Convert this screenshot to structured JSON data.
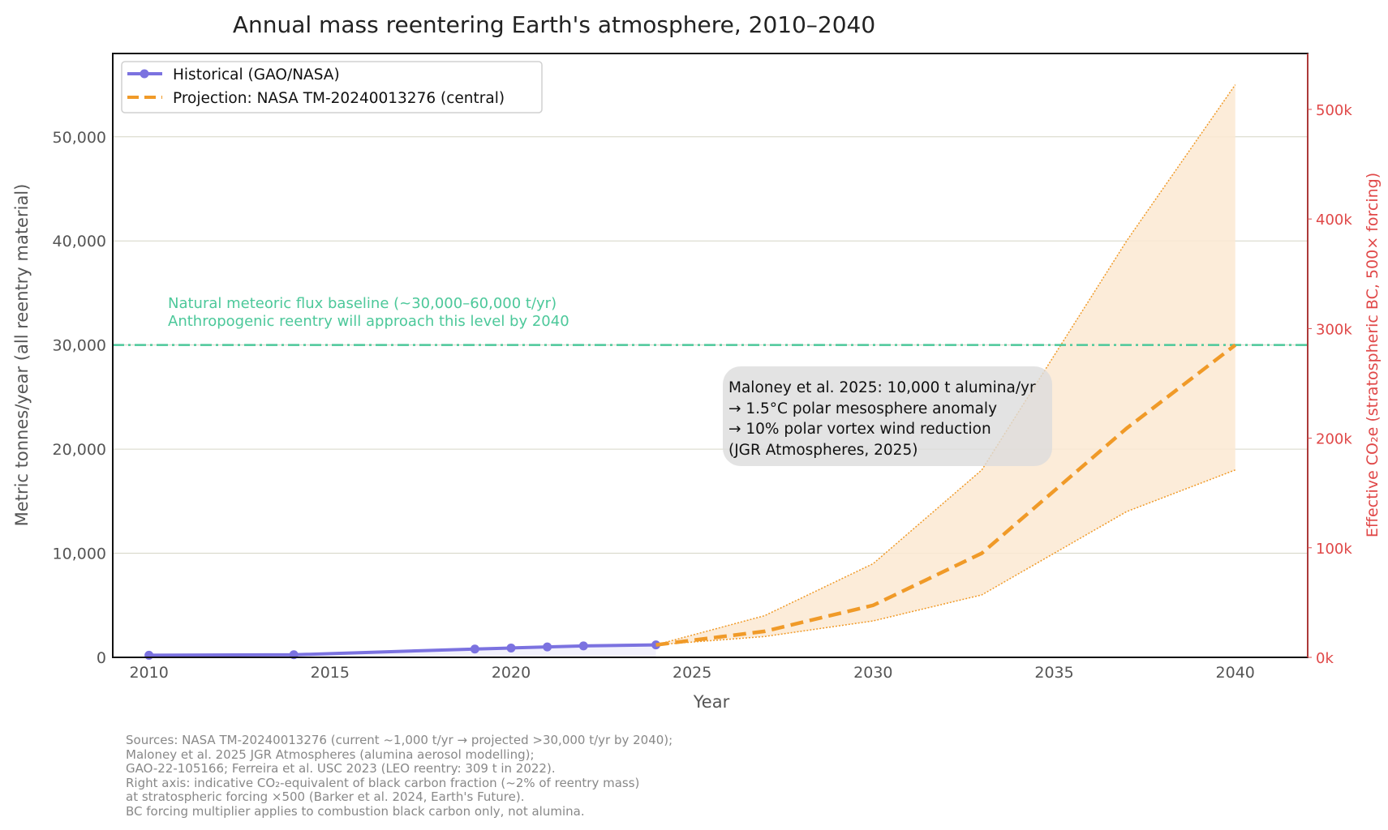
{
  "chart_data": {
    "type": "line",
    "title": "Annual mass reentering Earth's atmosphere, 2010–2040",
    "xlabel": "Year",
    "ylabel": "Metric tonnes/year (all reentry material)",
    "y2label": "Effective CO₂e (stratospheric BC, 500× forcing)",
    "xlim": [
      2009,
      2042
    ],
    "ylim": [
      0,
      58000
    ],
    "y2lim": [
      0,
      551000
    ],
    "xticks": [
      2010,
      2015,
      2020,
      2025,
      2030,
      2035,
      2040
    ],
    "yticks": [
      0,
      10000,
      20000,
      30000,
      40000,
      50000
    ],
    "ytick_labels": [
      "0",
      "10,000",
      "20,000",
      "30,000",
      "40,000",
      "50,000"
    ],
    "y2ticks": [
      0,
      100000,
      200000,
      300000,
      400000,
      500000
    ],
    "y2tick_labels": [
      "0k",
      "100k",
      "200k",
      "300k",
      "400k",
      "500k"
    ],
    "grid": "horizontal",
    "legend_placement": "top-left",
    "colors": {
      "historical": "#7b72e0",
      "projection": "#f09a28",
      "band": "#fbe9d2",
      "baseline": "#4cc89a",
      "right_axis": "#e04848"
    },
    "series": [
      {
        "name": "Historical (GAO/NASA)",
        "style": "solid-markers",
        "x": [
          2010,
          2014,
          2019,
          2020,
          2021,
          2022,
          2024
        ],
        "y": [
          200,
          250,
          800,
          900,
          1000,
          1100,
          1200
        ]
      },
      {
        "name": "Projection: NASA TM-20240013276 (central)",
        "style": "dashed",
        "x": [
          2024,
          2027,
          2030,
          2033,
          2037,
          2040
        ],
        "y": [
          1200,
          2500,
          5000,
          10000,
          22000,
          30000
        ]
      }
    ],
    "band": {
      "x": [
        2024,
        2027,
        2030,
        2033,
        2037,
        2040
      ],
      "upper": [
        1200,
        4000,
        9000,
        18000,
        40000,
        55000
      ],
      "lower": [
        1200,
        2000,
        3500,
        6000,
        14000,
        18000
      ]
    },
    "baseline": {
      "y": 30000,
      "label_lines": [
        "Natural meteoric flux baseline (~30,000–60,000 t/yr)",
        "Anthropogenic reentry will approach this level by 2040"
      ]
    },
    "annotation_lines": [
      "Maloney et al. 2025: 10,000 t alumina/yr",
      "→ 1.5°C polar mesosphere anomaly",
      "→ 10% polar vortex wind reduction",
      "(JGR Atmospheres, 2025)"
    ],
    "sources_lines": [
      "Sources: NASA TM-20240013276 (current ~1,000 t/yr → projected >30,000 t/yr by 2040);",
      "Maloney et al. 2025 JGR Atmospheres (alumina aerosol modelling);",
      "GAO-22-105166; Ferreira et al. USC 2023 (LEO reentry: 309 t in 2022).",
      "Right axis: indicative CO₂-equivalent of black carbon fraction (~2% of reentry mass)",
      "at stratospheric forcing ×500 (Barker et al. 2024, Earth's Future).",
      "BC forcing multiplier applies to combustion black carbon only, not alumina."
    ]
  }
}
